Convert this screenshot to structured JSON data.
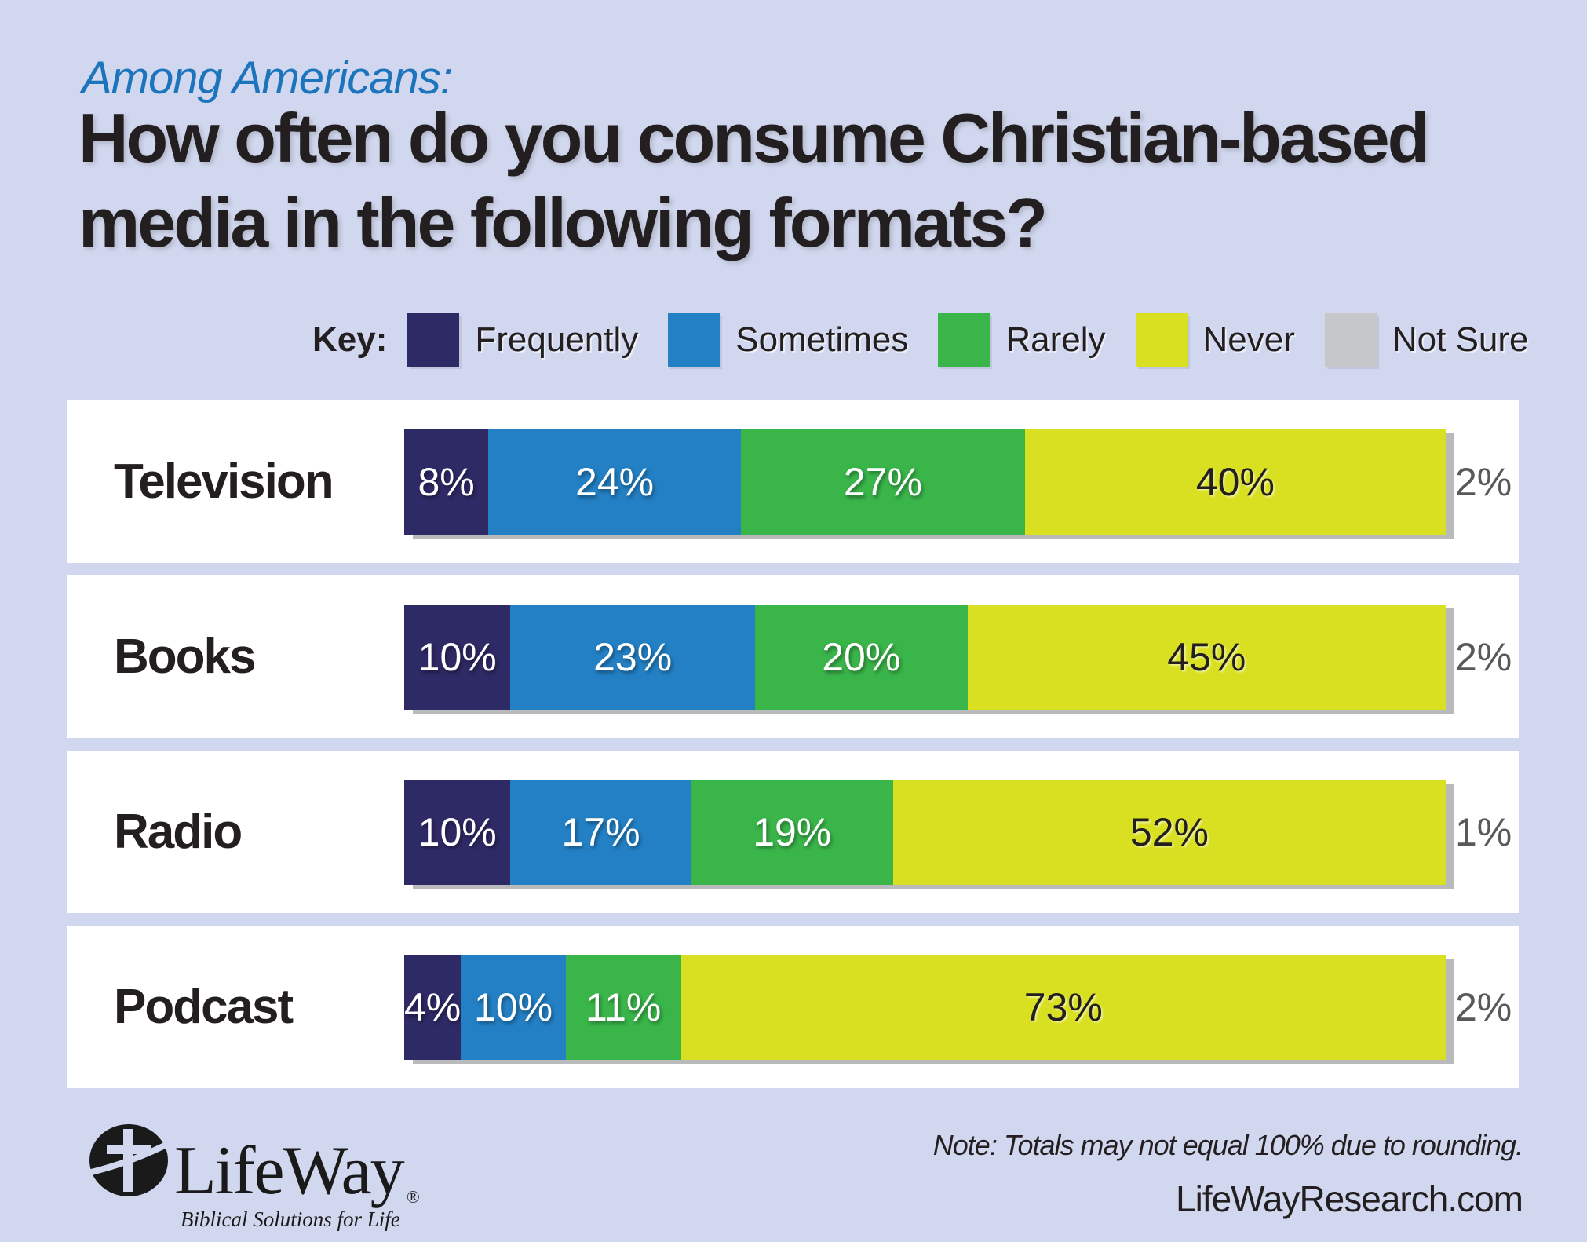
{
  "page": {
    "background": "#d1d7ee",
    "panel": "#ffffff"
  },
  "header": {
    "kicker": "Among Americans:",
    "kicker_color": "#1c75bc",
    "title_line1": "How often do you consume Christian-based",
    "title_line2": "media in the following formats?"
  },
  "legend": {
    "label": "Key:",
    "position": "top",
    "items": [
      {
        "label": "Frequently",
        "color": "#2e2a66"
      },
      {
        "label": "Sometimes",
        "color": "#2380c4"
      },
      {
        "label": "Rarely",
        "color": "#3ab54a"
      },
      {
        "label": "Never",
        "color": "#d9e021"
      },
      {
        "label": "Not Sure",
        "color": "#c6c7c9"
      }
    ]
  },
  "chart_data": {
    "type": "bar",
    "orientation": "horizontal-stacked",
    "title": "How often do you consume Christian-based media in the following formats?",
    "subtitle": "Among Americans:",
    "categories": [
      "Television",
      "Books",
      "Radio",
      "Podcast"
    ],
    "series": [
      {
        "name": "Frequently",
        "color": "#2e2a66",
        "text_color": "#ffffff",
        "values": [
          8,
          10,
          10,
          4
        ]
      },
      {
        "name": "Sometimes",
        "color": "#2380c4",
        "text_color": "#ffffff",
        "values": [
          24,
          23,
          17,
          10
        ]
      },
      {
        "name": "Rarely",
        "color": "#3ab54a",
        "text_color": "#ffffff",
        "values": [
          27,
          20,
          19,
          11
        ]
      },
      {
        "name": "Never",
        "color": "#d9e021",
        "text_color": "#231f20",
        "values": [
          40,
          45,
          52,
          73
        ]
      },
      {
        "name": "Not Sure",
        "color": "#c6c7c9",
        "text_color": "#58595b",
        "values": [
          2,
          2,
          1,
          2
        ]
      }
    ],
    "value_suffix": "%",
    "not_sure_rendered_as": "text outside right end of bar",
    "axis": "none",
    "grid": false
  },
  "footer": {
    "note": "Note: Totals may not equal 100% due to rounding.",
    "url": "LifeWayResearch.com",
    "logo": {
      "name": "LifeWay",
      "registered": "®",
      "tagline": "Biblical Solutions for Life"
    }
  },
  "colors": {
    "background": "#d1d7ee",
    "panel": "#ffffff",
    "title_text": "#231f20",
    "kicker_text": "#1c75bc",
    "notsure_text": "#58595b",
    "bar_shadow": "#b9babc",
    "logo_ink": "#1a1a1a"
  }
}
